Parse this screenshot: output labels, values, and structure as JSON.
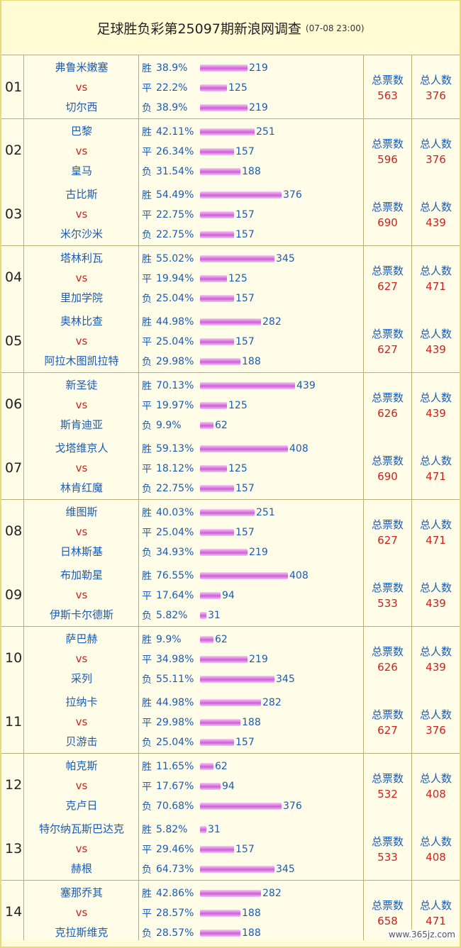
{
  "header": {
    "title": "足球胜负彩第25097期新浪网调查",
    "datetime": "(07-08 23:00)"
  },
  "labels": {
    "vs": "vs",
    "win": "胜",
    "draw": "平",
    "lose": "负",
    "total_votes": "总票数",
    "total_people": "总人数"
  },
  "watermark": "www.365jz.com",
  "colors": {
    "team": "#1a5cb3",
    "accent": "#d12020",
    "bar": "#cf5fd6",
    "bg": "#fffce8"
  },
  "matches": [
    {
      "num": "01",
      "home": "弗鲁米嫩塞",
      "away": "切尔西",
      "stats": [
        {
          "pct": "38.9%",
          "count": 219
        },
        {
          "pct": "22.2%",
          "count": 125
        },
        {
          "pct": "38.9%",
          "count": 219
        }
      ],
      "total_votes": "563",
      "total_people": "376"
    },
    {
      "num": "02",
      "home": "巴黎",
      "away": "皇马",
      "stats": [
        {
          "pct": "42.11%",
          "count": 251
        },
        {
          "pct": "26.34%",
          "count": 157
        },
        {
          "pct": "31.54%",
          "count": 188
        }
      ],
      "total_votes": "596",
      "total_people": "376"
    },
    {
      "num": "03",
      "home": "古比斯",
      "away": "米尔沙米",
      "stats": [
        {
          "pct": "54.49%",
          "count": 376
        },
        {
          "pct": "22.75%",
          "count": 157
        },
        {
          "pct": "22.75%",
          "count": 157
        }
      ],
      "total_votes": "690",
      "total_people": "439"
    },
    {
      "num": "04",
      "home": "塔林利瓦",
      "away": "里加学院",
      "stats": [
        {
          "pct": "55.02%",
          "count": 345
        },
        {
          "pct": "19.94%",
          "count": 125
        },
        {
          "pct": "25.04%",
          "count": 157
        }
      ],
      "total_votes": "627",
      "total_people": "471"
    },
    {
      "num": "05",
      "home": "奥林比查",
      "away": "阿拉木图凯拉特",
      "stats": [
        {
          "pct": "44.98%",
          "count": 282
        },
        {
          "pct": "25.04%",
          "count": 157
        },
        {
          "pct": "29.98%",
          "count": 188
        }
      ],
      "total_votes": "627",
      "total_people": "439"
    },
    {
      "num": "06",
      "home": "新圣徒",
      "away": "斯肯迪亚",
      "stats": [
        {
          "pct": "70.13%",
          "count": 439
        },
        {
          "pct": "19.97%",
          "count": 125
        },
        {
          "pct": "9.9%",
          "count": 62
        }
      ],
      "total_votes": "626",
      "total_people": "439"
    },
    {
      "num": "07",
      "home": "戈塔维京人",
      "away": "林肯红魔",
      "stats": [
        {
          "pct": "59.13%",
          "count": 408
        },
        {
          "pct": "18.12%",
          "count": 125
        },
        {
          "pct": "22.75%",
          "count": 157
        }
      ],
      "total_votes": "690",
      "total_people": "471"
    },
    {
      "num": "08",
      "home": "维图斯",
      "away": "日林斯基",
      "stats": [
        {
          "pct": "40.03%",
          "count": 251
        },
        {
          "pct": "25.04%",
          "count": 157
        },
        {
          "pct": "34.93%",
          "count": 219
        }
      ],
      "total_votes": "627",
      "total_people": "471"
    },
    {
      "num": "09",
      "home": "布加勒星",
      "away": "伊斯卡尔德斯",
      "stats": [
        {
          "pct": "76.55%",
          "count": 408
        },
        {
          "pct": "17.64%",
          "count": 94
        },
        {
          "pct": "5.82%",
          "count": 31
        }
      ],
      "total_votes": "533",
      "total_people": "439"
    },
    {
      "num": "10",
      "home": "萨巴赫",
      "away": "采列",
      "stats": [
        {
          "pct": "9.9%",
          "count": 62
        },
        {
          "pct": "34.98%",
          "count": 219
        },
        {
          "pct": "55.11%",
          "count": 345
        }
      ],
      "total_votes": "626",
      "total_people": "439"
    },
    {
      "num": "11",
      "home": "拉纳卡",
      "away": "贝游击",
      "stats": [
        {
          "pct": "44.98%",
          "count": 282
        },
        {
          "pct": "29.98%",
          "count": 188
        },
        {
          "pct": "25.04%",
          "count": 157
        }
      ],
      "total_votes": "627",
      "total_people": "376"
    },
    {
      "num": "12",
      "home": "帕克斯",
      "away": "克卢日",
      "stats": [
        {
          "pct": "11.65%",
          "count": 62
        },
        {
          "pct": "17.67%",
          "count": 94
        },
        {
          "pct": "70.68%",
          "count": 376
        }
      ],
      "total_votes": "532",
      "total_people": "408"
    },
    {
      "num": "13",
      "home": "特尔纳瓦斯巴达克",
      "away": "赫根",
      "stats": [
        {
          "pct": "5.82%",
          "count": 31
        },
        {
          "pct": "29.46%",
          "count": 157
        },
        {
          "pct": "64.73%",
          "count": 345
        }
      ],
      "total_votes": "533",
      "total_people": "408"
    },
    {
      "num": "14",
      "home": "塞那乔其",
      "away": "克拉斯维克",
      "stats": [
        {
          "pct": "42.86%",
          "count": 282
        },
        {
          "pct": "28.57%",
          "count": 188
        },
        {
          "pct": "28.57%",
          "count": 188
        }
      ],
      "total_votes": "658",
      "total_people": "471"
    }
  ]
}
